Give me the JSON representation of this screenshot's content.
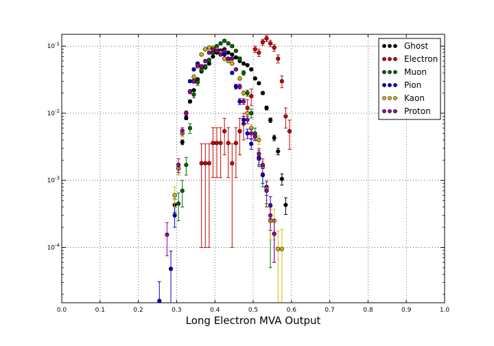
{
  "chart_data": {
    "type": "scatter",
    "title": "",
    "xlabel": "Long Electron MVA Output",
    "ylabel": "",
    "xlim": [
      0.0,
      1.0
    ],
    "ylim": [
      1.5e-05,
      0.15
    ],
    "yscale": "log",
    "grid": true,
    "legend_position": "top-right",
    "x_ticks": [
      "0.0",
      "0.1",
      "0.2",
      "0.3",
      "0.4",
      "0.5",
      "0.6",
      "0.7",
      "0.8",
      "0.9",
      "1.0"
    ],
    "y_ticks": [
      {
        "value": 0.1,
        "base": "10",
        "exp": "-1"
      },
      {
        "value": 0.01,
        "base": "10",
        "exp": "-2"
      },
      {
        "value": 0.001,
        "base": "10",
        "exp": "-3"
      },
      {
        "value": 0.0001,
        "base": "10",
        "exp": "-4"
      }
    ],
    "series": [
      {
        "name": "Ghost",
        "color": "#000000",
        "x": [
          0.295,
          0.305,
          0.315,
          0.325,
          0.335,
          0.345,
          0.355,
          0.365,
          0.375,
          0.385,
          0.395,
          0.405,
          0.415,
          0.425,
          0.435,
          0.445,
          0.455,
          0.465,
          0.475,
          0.485,
          0.495,
          0.505,
          0.515,
          0.525,
          0.535,
          0.545,
          0.555,
          0.565,
          0.575,
          0.585
        ],
        "y": [
          0.00043,
          0.0015,
          0.0037,
          0.0085,
          0.015,
          0.022,
          0.032,
          0.042,
          0.048,
          0.055,
          0.07,
          0.08,
          0.086,
          0.09,
          0.08,
          0.075,
          0.068,
          0.06,
          0.055,
          0.052,
          0.045,
          0.033,
          0.028,
          0.02,
          0.012,
          0.0079,
          0.0043,
          0.0027,
          0.00105,
          0.00043
        ],
        "err": [
          0.0001,
          0.0002,
          0.0003,
          0.0005,
          0.0008,
          0.001,
          0.001,
          0.0015,
          0.0015,
          0.002,
          0.002,
          0.002,
          0.002,
          0.002,
          0.002,
          0.002,
          0.002,
          0.002,
          0.002,
          0.002,
          0.002,
          0.0015,
          0.0012,
          0.001,
          0.0008,
          0.0006,
          0.0004,
          0.0003,
          0.0002,
          0.00012
        ]
      },
      {
        "name": "Electron",
        "color": "#cc0000",
        "x": [
          0.365,
          0.375,
          0.385,
          0.395,
          0.405,
          0.415,
          0.425,
          0.435,
          0.445,
          0.455,
          0.465,
          0.475,
          0.485,
          0.495,
          0.505,
          0.515,
          0.525,
          0.535,
          0.545,
          0.555,
          0.565,
          0.575,
          0.585,
          0.595
        ],
        "y": [
          0.0018,
          0.0018,
          0.0018,
          0.0036,
          0.0036,
          0.0036,
          0.0054,
          0.0036,
          0.0018,
          0.0036,
          0.0054,
          0.007,
          0.012,
          0.018,
          0.09,
          0.08,
          0.115,
          0.13,
          0.11,
          0.095,
          0.065,
          0.03,
          0.009,
          0.0054
        ],
        "err": [
          0.0017,
          0.0017,
          0.0017,
          0.0025,
          0.0025,
          0.0025,
          0.003,
          0.0025,
          0.0017,
          0.0025,
          0.003,
          0.003,
          0.004,
          0.005,
          0.01,
          0.01,
          0.012,
          0.013,
          0.012,
          0.011,
          0.009,
          0.006,
          0.003,
          0.0025
        ]
      },
      {
        "name": "Muon",
        "color": "#006600",
        "x": [
          0.305,
          0.315,
          0.325,
          0.335,
          0.345,
          0.355,
          0.365,
          0.375,
          0.385,
          0.395,
          0.405,
          0.415,
          0.425,
          0.435,
          0.445,
          0.455,
          0.465,
          0.475,
          0.485,
          0.495,
          0.505,
          0.515,
          0.525,
          0.535,
          0.545
        ],
        "y": [
          0.00045,
          0.0007,
          0.0017,
          0.006,
          0.019,
          0.029,
          0.044,
          0.05,
          0.062,
          0.08,
          0.1,
          0.11,
          0.12,
          0.11,
          0.1,
          0.085,
          0.065,
          0.04,
          0.02,
          0.01,
          0.005,
          0.0022,
          0.0012,
          0.0007,
          0.00025
        ],
        "err": [
          0.0002,
          0.0003,
          0.0005,
          0.001,
          0.002,
          0.003,
          0.003,
          0.003,
          0.004,
          0.004,
          0.005,
          0.005,
          0.005,
          0.005,
          0.005,
          0.004,
          0.004,
          0.003,
          0.002,
          0.0015,
          0.001,
          0.0006,
          0.0004,
          0.0003,
          0.0002
        ]
      },
      {
        "name": "Pion",
        "color": "#0000cc",
        "x": [
          0.255,
          0.285,
          0.295,
          0.305,
          0.315,
          0.325,
          0.335,
          0.345,
          0.355,
          0.365,
          0.375,
          0.385,
          0.395,
          0.405,
          0.415,
          0.425,
          0.435,
          0.445,
          0.455,
          0.465,
          0.475,
          0.485,
          0.495,
          0.505,
          0.515,
          0.525,
          0.535,
          0.545,
          0.555
        ],
        "y": [
          1.6e-05,
          4.8e-05,
          0.0003,
          0.0015,
          0.005,
          0.01,
          0.03,
          0.045,
          0.055,
          0.075,
          0.09,
          0.095,
          0.09,
          0.09,
          0.085,
          0.075,
          0.065,
          0.04,
          0.025,
          0.015,
          0.008,
          0.005,
          0.0035,
          0.0045,
          0.0021,
          0.0012,
          0.0008,
          0.00042,
          0.00016
        ],
        "err": [
          1.5e-05,
          4e-05,
          0.0001,
          0.0003,
          0.0005,
          0.0008,
          0.0015,
          0.002,
          0.003,
          0.003,
          0.004,
          0.004,
          0.004,
          0.004,
          0.004,
          0.003,
          0.003,
          0.002,
          0.002,
          0.0015,
          0.001,
          0.0008,
          0.0006,
          0.0006,
          0.0004,
          0.0003,
          0.0002,
          0.00015,
          0.0001
        ]
      },
      {
        "name": "Kaon",
        "color": "#d4b800",
        "x": [
          0.295,
          0.305,
          0.315,
          0.325,
          0.335,
          0.345,
          0.355,
          0.365,
          0.375,
          0.385,
          0.395,
          0.405,
          0.415,
          0.425,
          0.435,
          0.445,
          0.455,
          0.465,
          0.475,
          0.485,
          0.495,
          0.505,
          0.515,
          0.525,
          0.535,
          0.545,
          0.555,
          0.565,
          0.575
        ],
        "y": [
          0.0006,
          0.0015,
          0.005,
          0.01,
          0.021,
          0.035,
          0.05,
          0.075,
          0.09,
          0.095,
          0.095,
          0.09,
          0.08,
          0.065,
          0.06,
          0.055,
          0.045,
          0.033,
          0.02,
          0.01,
          0.006,
          0.0045,
          0.004,
          0.0016,
          0.00075,
          0.00025,
          0.00025,
          9.5e-05,
          9.5e-05
        ],
        "err": [
          0.0002,
          0.0003,
          0.0005,
          0.0008,
          0.0015,
          0.002,
          0.003,
          0.003,
          0.004,
          0.004,
          0.004,
          0.004,
          0.004,
          0.003,
          0.003,
          0.003,
          0.002,
          0.002,
          0.0015,
          0.001,
          0.0008,
          0.0006,
          0.0006,
          0.0003,
          0.00025,
          0.00012,
          0.00012,
          8e-05,
          9e-05
        ]
      },
      {
        "name": "Proton",
        "color": "#990099",
        "x": [
          0.275,
          0.305,
          0.315,
          0.325,
          0.335,
          0.345,
          0.355,
          0.365,
          0.375,
          0.385,
          0.395,
          0.405,
          0.415,
          0.425,
          0.435,
          0.445,
          0.455,
          0.465,
          0.475,
          0.485,
          0.495,
          0.505,
          0.515,
          0.525,
          0.535,
          0.545,
          0.555
        ],
        "y": [
          0.000155,
          0.0017,
          0.0055,
          0.01,
          0.021,
          0.03,
          0.052,
          0.05,
          0.06,
          0.08,
          0.09,
          0.085,
          0.075,
          0.085,
          0.065,
          0.065,
          0.045,
          0.025,
          0.015,
          0.008,
          0.005,
          0.0045,
          0.0025,
          0.0017,
          0.0007,
          0.0003,
          0.00016
        ],
        "err": [
          8e-05,
          0.0004,
          0.0006,
          0.0008,
          0.0015,
          0.002,
          0.003,
          0.003,
          0.003,
          0.004,
          0.004,
          0.004,
          0.004,
          0.004,
          0.003,
          0.003,
          0.002,
          0.002,
          0.0015,
          0.001,
          0.0008,
          0.0006,
          0.0005,
          0.0004,
          0.00025,
          0.00012,
          0.0001
        ]
      }
    ]
  }
}
